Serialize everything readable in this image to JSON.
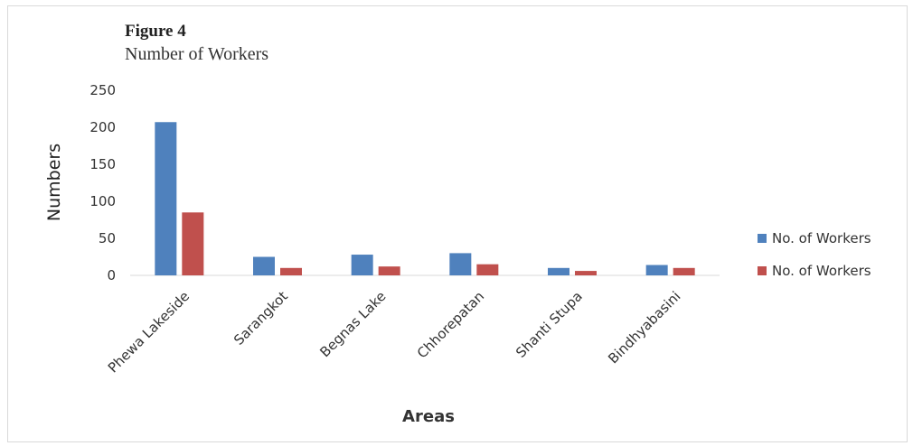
{
  "figure": {
    "label": "Figure 4"
  },
  "chart_data": {
    "type": "bar",
    "title": "Number of Workers",
    "xlabel": "Areas",
    "ylabel": "Numbers",
    "categories": [
      "Phewa Lakeside",
      "Sarangkot",
      "Begnas Lake",
      "Chhorepatan",
      "Shanti Stupa",
      "Bindhyabasini"
    ],
    "series": [
      {
        "name": "No. of Workers",
        "values": [
          207,
          25,
          28,
          30,
          10,
          14
        ],
        "color": "#4f81bd"
      },
      {
        "name": "No. of Workers",
        "values": [
          85,
          10,
          12,
          15,
          6,
          10
        ],
        "color": "#c0504d"
      }
    ],
    "ylim": [
      0,
      250
    ],
    "yticks": [
      0,
      50,
      100,
      150,
      200,
      250
    ],
    "grid": false,
    "legend": "right"
  }
}
